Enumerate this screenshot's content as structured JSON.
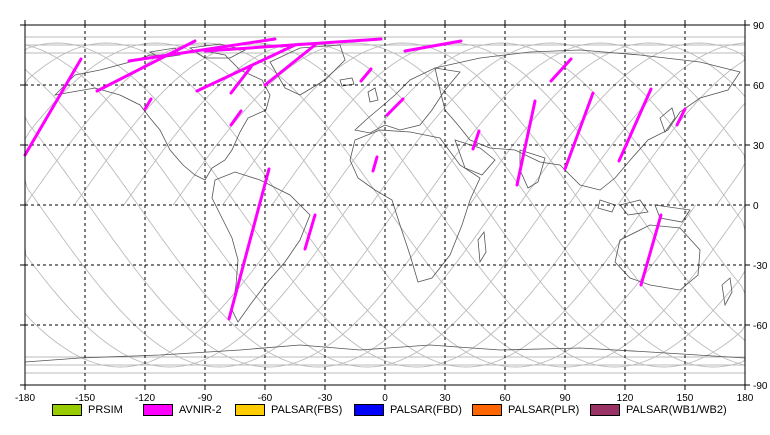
{
  "map": {
    "x_ticks": [
      "-180",
      "-150",
      "-120",
      "-90",
      "-60",
      "-30",
      "0",
      "30",
      "60",
      "90",
      "120",
      "150",
      "180"
    ],
    "y_ticks_right": [
      "90",
      "60",
      "30",
      "0",
      "-30",
      "-60",
      "-90"
    ],
    "lon_range": [
      -180,
      180
    ],
    "lat_range": [
      -90,
      90
    ],
    "grid": "dashed",
    "orbit_color": "#bbbbbb",
    "coast_color": "#555555",
    "pass_color": "#ff00ff"
  },
  "chart_data": {
    "type": "map",
    "observation_passes": [
      {
        "sensor": "AVNIR-2",
        "track": [
          [
            -180,
            25
          ],
          [
            -152,
            73
          ]
        ]
      },
      {
        "sensor": "AVNIR-2",
        "track": [
          [
            -144,
            57
          ],
          [
            -95,
            82
          ]
        ]
      },
      {
        "sensor": "AVNIR-2",
        "track": [
          [
            -128,
            72
          ],
          [
            -55,
            83
          ]
        ]
      },
      {
        "sensor": "AVNIR-2",
        "track": [
          [
            -94,
            57
          ],
          [
            -45,
            80
          ]
        ]
      },
      {
        "sensor": "AVNIR-2",
        "track": [
          [
            -60,
            60
          ],
          [
            -35,
            80
          ]
        ]
      },
      {
        "sensor": "AVNIR-2",
        "track": [
          [
            -90,
            77
          ],
          [
            -2,
            83
          ]
        ]
      },
      {
        "sensor": "AVNIR-2",
        "track": [
          [
            -77,
            56
          ],
          [
            -67,
            69
          ]
        ]
      },
      {
        "sensor": "AVNIR-2",
        "track": [
          [
            -120,
            48
          ],
          [
            -117,
            53
          ]
        ]
      },
      {
        "sensor": "AVNIR-2",
        "track": [
          [
            -77,
            40
          ],
          [
            -72,
            47
          ]
        ]
      },
      {
        "sensor": "AVNIR-2",
        "track": [
          [
            -78,
            -57
          ],
          [
            -58,
            18
          ]
        ]
      },
      {
        "sensor": "AVNIR-2",
        "track": [
          [
            -40,
            -22
          ],
          [
            -35,
            -5
          ]
        ]
      },
      {
        "sensor": "AVNIR-2",
        "track": [
          [
            -12,
            62
          ],
          [
            -7,
            68
          ]
        ]
      },
      {
        "sensor": "AVNIR-2",
        "track": [
          [
            10,
            77
          ],
          [
            38,
            82
          ]
        ]
      },
      {
        "sensor": "AVNIR-2",
        "track": [
          [
            1,
            45
          ],
          [
            9,
            53
          ]
        ]
      },
      {
        "sensor": "AVNIR-2",
        "track": [
          [
            -6,
            17
          ],
          [
            -4,
            24
          ]
        ]
      },
      {
        "sensor": "AVNIR-2",
        "track": [
          [
            44,
            28
          ],
          [
            47,
            37
          ]
        ]
      },
      {
        "sensor": "AVNIR-2",
        "track": [
          [
            66,
            10
          ],
          [
            75,
            52
          ]
        ]
      },
      {
        "sensor": "AVNIR-2",
        "track": [
          [
            83,
            62
          ],
          [
            93,
            73
          ]
        ]
      },
      {
        "sensor": "AVNIR-2",
        "track": [
          [
            90,
            18
          ],
          [
            104,
            56
          ]
        ]
      },
      {
        "sensor": "AVNIR-2",
        "track": [
          [
            117,
            22
          ],
          [
            133,
            58
          ]
        ]
      },
      {
        "sensor": "AVNIR-2",
        "track": [
          [
            128,
            -40
          ],
          [
            138,
            -5
          ]
        ]
      },
      {
        "sensor": "AVNIR-2",
        "track": [
          [
            146,
            40
          ],
          [
            150,
            48
          ]
        ]
      }
    ]
  },
  "legend": [
    {
      "label": "PRSIM",
      "color": "#99cc00"
    },
    {
      "label": "AVNIR-2",
      "color": "#ff00ff"
    },
    {
      "label": "PALSAR(FBS)",
      "color": "#ffcc00"
    },
    {
      "label": "PALSAR(FBD)",
      "color": "#0000ff"
    },
    {
      "label": "PALSAR(PLR)",
      "color": "#ff6600"
    },
    {
      "label": "PALSAR(WB1/WB2)",
      "color": "#993366"
    }
  ]
}
